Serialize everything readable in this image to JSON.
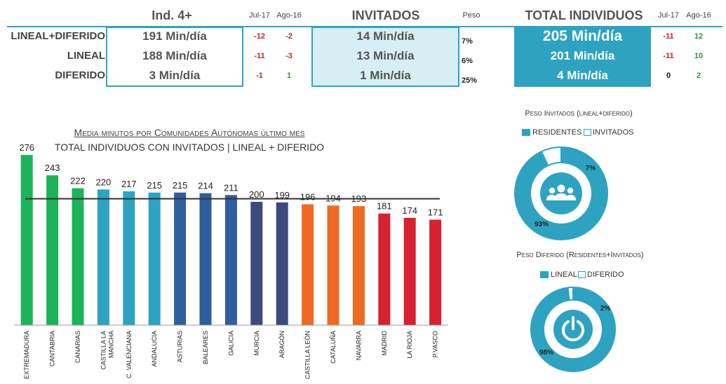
{
  "header": {
    "ind_title": "Ind. 4+",
    "inv_title": "INVITADOS",
    "tot_title": "TOTAL INDIVIDUOS",
    "col_jul": "Jul-17",
    "col_ago": "Ago-16",
    "col_peso": "Peso"
  },
  "rows": [
    {
      "label": "LINEAL+DIFERIDO",
      "ind": "191 Min/día",
      "ind_jul": "-12",
      "ind_ago": "-2",
      "inv": "14 Min/día",
      "peso": "7%",
      "tot": "205 Min/día",
      "tot_jul": "-11",
      "tot_ago": "12"
    },
    {
      "label": "LINEAL",
      "ind": "188 Min/día",
      "ind_jul": "-11",
      "ind_ago": "-3",
      "inv": "13 Min/día",
      "peso": "6%",
      "tot": "201 Min/día",
      "tot_jul": "-11",
      "tot_ago": "10"
    },
    {
      "label": "DIFERIDO",
      "ind": "3 Min/día",
      "ind_jul": "-1",
      "ind_ago": "1",
      "inv": "1 Min/día",
      "peso": "25%",
      "tot": "4 Min/día",
      "tot_jul": "0",
      "tot_ago": "2"
    }
  ],
  "colors": {
    "accent": "#2ea3c1",
    "light_fill": "#d8eef5",
    "positive": "#2a9a3a",
    "negative": "#c0202a"
  },
  "chart_data": [
    {
      "type": "bar",
      "title": "Media minutos por Comunidades Autónomas último mes",
      "subtitle": "TOTAL INDIVIDUOS CON INVITADOS | LINEAL + DIFERIDO",
      "categories": [
        "EXTREMADURA",
        "CANTABRIA",
        "CANARIAS",
        "CASTILLA LA MANCHA",
        "C. VALENCIANA",
        "ANDALUCIA",
        "ASTURIAS",
        "BALEARES",
        "GALICIA",
        "MURCIA",
        "ARAGÓN",
        "CASTILLA LEÓN",
        "CATALUÑA",
        "NAVARRA",
        "MADRID",
        "LA RIOJA",
        "P.VASCO"
      ],
      "values": [
        276,
        243,
        222,
        220,
        217,
        215,
        215,
        214,
        211,
        200,
        199,
        196,
        194,
        193,
        181,
        174,
        171
      ],
      "colors": [
        "#1db35a",
        "#1db35a",
        "#1db35a",
        "#2ea3c1",
        "#2ea3c1",
        "#2ea3c1",
        "#2f5e9e",
        "#2f5e9e",
        "#2f5e9e",
        "#3d4a7c",
        "#3d4a7c",
        "#ee6a22",
        "#ee6a22",
        "#ee6a22",
        "#d8212f",
        "#d8212f",
        "#d8212f"
      ],
      "reference_value": 205,
      "ylim": [
        0,
        300
      ]
    },
    {
      "type": "pie",
      "title": "Peso Invitados (lineal+diferido)",
      "labels": [
        "RESIDENTES",
        "INVITADOS"
      ],
      "values": [
        93,
        7
      ],
      "value_labels": [
        "93%",
        "7%"
      ],
      "colors": [
        "#2ea3c1",
        "#ffffff"
      ],
      "legend": "top",
      "center_icon": "group-icon"
    },
    {
      "type": "pie",
      "title": "Peso Diferido  (Residentes+Invitados)",
      "labels": [
        "LINEAL",
        "DIFERIDO"
      ],
      "values": [
        98,
        2
      ],
      "value_labels": [
        "98%",
        "2%"
      ],
      "colors": [
        "#2ea3c1",
        "#ffffff"
      ],
      "legend": "top",
      "center_icon": "power-icon"
    }
  ]
}
